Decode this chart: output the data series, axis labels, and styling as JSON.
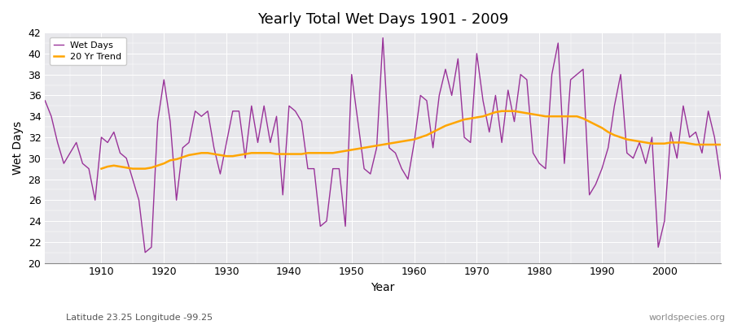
{
  "title": "Yearly Total Wet Days 1901 - 2009",
  "xlabel": "Year",
  "ylabel": "Wet Days",
  "subtitle": "Latitude 23.25 Longitude -99.25",
  "watermark": "worldspecies.org",
  "legend_labels": [
    "Wet Days",
    "20 Yr Trend"
  ],
  "wet_days_color": "#993399",
  "trend_color": "#FFA500",
  "fig_bg_color": "#FFFFFF",
  "plot_bg_color": "#E8E8EC",
  "ylim": [
    20,
    42
  ],
  "yticks": [
    20,
    22,
    24,
    26,
    28,
    30,
    32,
    34,
    36,
    38,
    40,
    42
  ],
  "xticks": [
    1910,
    1920,
    1930,
    1940,
    1950,
    1960,
    1970,
    1980,
    1990,
    2000
  ],
  "years": [
    1901,
    1902,
    1903,
    1904,
    1905,
    1906,
    1907,
    1908,
    1909,
    1910,
    1911,
    1912,
    1913,
    1914,
    1915,
    1916,
    1917,
    1918,
    1919,
    1920,
    1921,
    1922,
    1923,
    1924,
    1925,
    1926,
    1927,
    1928,
    1929,
    1930,
    1931,
    1932,
    1933,
    1934,
    1935,
    1936,
    1937,
    1938,
    1939,
    1940,
    1941,
    1942,
    1943,
    1944,
    1945,
    1946,
    1947,
    1948,
    1949,
    1950,
    1951,
    1952,
    1953,
    1954,
    1955,
    1956,
    1957,
    1958,
    1959,
    1960,
    1961,
    1962,
    1963,
    1964,
    1965,
    1966,
    1967,
    1968,
    1969,
    1970,
    1971,
    1972,
    1973,
    1974,
    1975,
    1976,
    1977,
    1978,
    1979,
    1980,
    1981,
    1982,
    1983,
    1984,
    1985,
    1986,
    1987,
    1988,
    1989,
    1990,
    1991,
    1992,
    1993,
    1994,
    1995,
    1996,
    1997,
    1998,
    1999,
    2000,
    2001,
    2002,
    2003,
    2004,
    2005,
    2006,
    2007,
    2008,
    2009
  ],
  "wet_days": [
    35.5,
    34.0,
    31.5,
    29.5,
    30.5,
    31.5,
    29.5,
    29.0,
    26.0,
    32.0,
    31.5,
    32.5,
    30.5,
    30.0,
    28.0,
    26.0,
    21.0,
    21.5,
    33.5,
    37.5,
    33.5,
    26.0,
    31.0,
    31.5,
    34.5,
    34.0,
    34.5,
    31.0,
    28.5,
    31.5,
    34.5,
    34.5,
    30.0,
    35.0,
    31.5,
    35.0,
    31.5,
    34.0,
    26.5,
    35.0,
    34.5,
    33.5,
    29.0,
    29.0,
    23.5,
    24.0,
    29.0,
    29.0,
    23.5,
    38.0,
    33.5,
    29.0,
    28.5,
    31.0,
    41.5,
    31.0,
    30.5,
    29.0,
    28.0,
    31.5,
    36.0,
    35.5,
    31.0,
    36.0,
    38.5,
    36.0,
    39.5,
    32.0,
    31.5,
    40.0,
    35.5,
    32.5,
    36.0,
    31.5,
    36.5,
    33.5,
    38.0,
    37.5,
    30.5,
    29.5,
    29.0,
    38.0,
    41.0,
    29.5,
    37.5,
    38.0,
    38.5,
    26.5,
    27.5,
    29.0,
    31.0,
    35.0,
    38.0,
    30.5,
    30.0,
    31.5,
    29.5,
    32.0,
    21.5,
    24.0,
    32.5,
    30.0,
    35.0,
    32.0,
    32.5,
    30.5,
    34.5,
    32.0,
    28.0
  ],
  "trend_years": [
    1910,
    1911,
    1912,
    1913,
    1914,
    1915,
    1916,
    1917,
    1918,
    1919,
    1920,
    1921,
    1922,
    1923,
    1924,
    1925,
    1926,
    1927,
    1928,
    1929,
    1930,
    1931,
    1932,
    1933,
    1934,
    1935,
    1936,
    1937,
    1938,
    1939,
    1940,
    1941,
    1942,
    1943,
    1944,
    1945,
    1946,
    1947,
    1948,
    1949,
    1950,
    1951,
    1952,
    1953,
    1954,
    1955,
    1956,
    1957,
    1958,
    1959,
    1960,
    1961,
    1962,
    1963,
    1964,
    1965,
    1966,
    1967,
    1968,
    1969,
    1970,
    1971,
    1972,
    1973,
    1974,
    1975,
    1976,
    1977,
    1978,
    1979,
    1980,
    1981,
    1982,
    1983,
    1984,
    1985,
    1986,
    1987,
    1988,
    1989,
    1990,
    1991,
    1992,
    1993,
    1994,
    1995,
    1996,
    1997,
    1998,
    1999,
    2000,
    2001,
    2002,
    2003,
    2004,
    2005,
    2006,
    2007,
    2008,
    2009
  ],
  "trend_values": [
    29.0,
    29.2,
    29.3,
    29.2,
    29.1,
    29.0,
    29.0,
    29.0,
    29.1,
    29.3,
    29.5,
    29.8,
    29.9,
    30.1,
    30.3,
    30.4,
    30.5,
    30.5,
    30.4,
    30.3,
    30.2,
    30.2,
    30.3,
    30.4,
    30.5,
    30.5,
    30.5,
    30.5,
    30.4,
    30.4,
    30.4,
    30.4,
    30.4,
    30.5,
    30.5,
    30.5,
    30.5,
    30.5,
    30.6,
    30.7,
    30.8,
    30.9,
    31.0,
    31.1,
    31.2,
    31.3,
    31.4,
    31.5,
    31.6,
    31.7,
    31.8,
    32.0,
    32.2,
    32.5,
    32.8,
    33.1,
    33.3,
    33.5,
    33.7,
    33.8,
    33.9,
    34.0,
    34.2,
    34.4,
    34.5,
    34.5,
    34.5,
    34.4,
    34.3,
    34.2,
    34.1,
    34.0,
    34.0,
    34.0,
    34.0,
    34.0,
    34.0,
    33.8,
    33.5,
    33.2,
    32.9,
    32.5,
    32.2,
    32.0,
    31.8,
    31.7,
    31.6,
    31.5,
    31.4,
    31.4,
    31.4,
    31.5,
    31.5,
    31.5,
    31.4,
    31.3,
    31.3,
    31.3,
    31.3,
    31.3
  ]
}
